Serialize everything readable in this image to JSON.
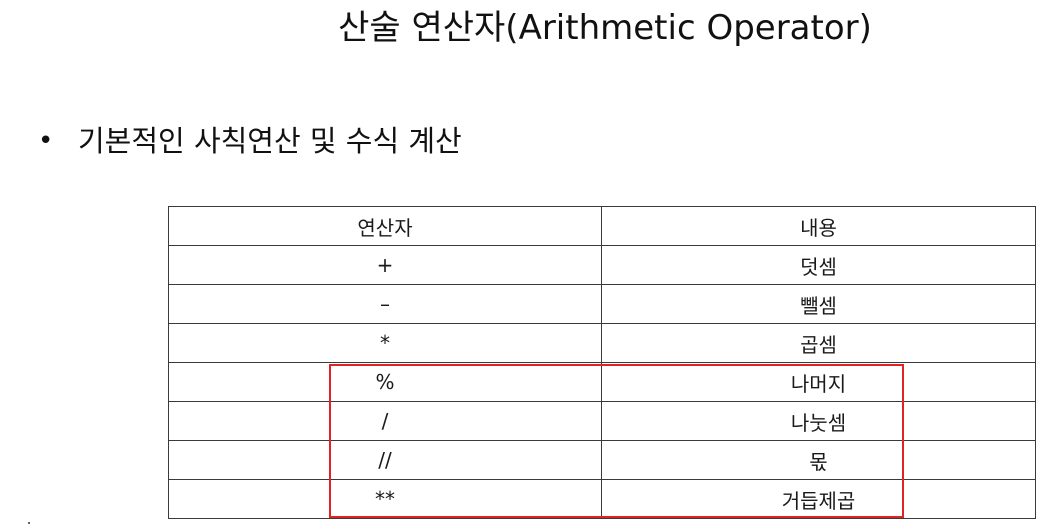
{
  "slide": {
    "title": "산술 연산자(Arithmetic Operator)",
    "bullet": {
      "marker": "•",
      "text": "기본적인 사칙연산 및 수식 계산"
    }
  },
  "table": {
    "headers": [
      "연산자",
      "내용"
    ],
    "rows": [
      {
        "operator": "+",
        "description": "덧셈"
      },
      {
        "operator": "–",
        "description": "뺄셈"
      },
      {
        "operator": "*",
        "description": "곱셈"
      },
      {
        "operator": "%",
        "description": "나머지"
      },
      {
        "operator": "/",
        "description": "나눗셈"
      },
      {
        "operator": "//",
        "description": "몫"
      },
      {
        "operator": "**",
        "description": "거듭제곱"
      }
    ]
  },
  "colors": {
    "highlight": "#e02424",
    "border": "#3a3a3a",
    "text": "#1a1a1a"
  }
}
